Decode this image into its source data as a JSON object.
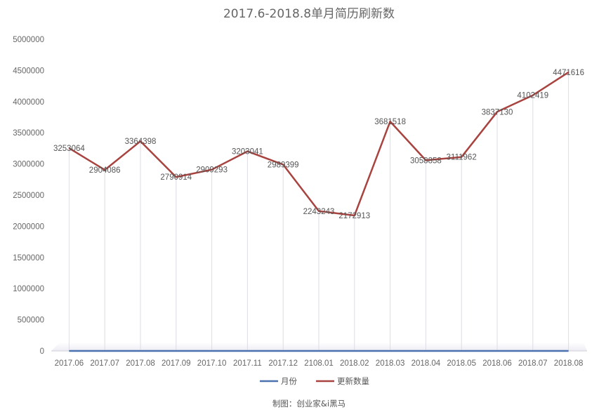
{
  "chart_data": {
    "type": "line",
    "title": "2017.6-2018.8单月简历刷新数",
    "categories": [
      "2017.06",
      "2017.07",
      "2017.08",
      "2017.09",
      "2017.10",
      "2017.11",
      "2017.12",
      "2108.01",
      "2018.02",
      "2018.03",
      "2018.04",
      "2018.05",
      "2018.06",
      "2018.07",
      "2018.08"
    ],
    "ylim": [
      0,
      5000000
    ],
    "yticks": [
      0,
      500000,
      1000000,
      1500000,
      2000000,
      2500000,
      3000000,
      3500000,
      4000000,
      4500000,
      5000000
    ],
    "series": [
      {
        "name": "月份",
        "color": "#4a72b0",
        "values": [
          0,
          0,
          0,
          0,
          0,
          0,
          0,
          0,
          0,
          0,
          0,
          0,
          0,
          0,
          0
        ],
        "labels": false
      },
      {
        "name": "更新数量",
        "color": "#a8433f",
        "values": [
          3253064,
          2904086,
          3364398,
          2790914,
          2909293,
          3203041,
          2989399,
          2243243,
          2172913,
          3681518,
          3058858,
          3111962,
          3837130,
          4102419,
          4471616
        ],
        "labels": true
      }
    ],
    "grid": false,
    "drop_lines": true,
    "legend_position": "bottom"
  },
  "credit": "制图：创业家&i黑马"
}
